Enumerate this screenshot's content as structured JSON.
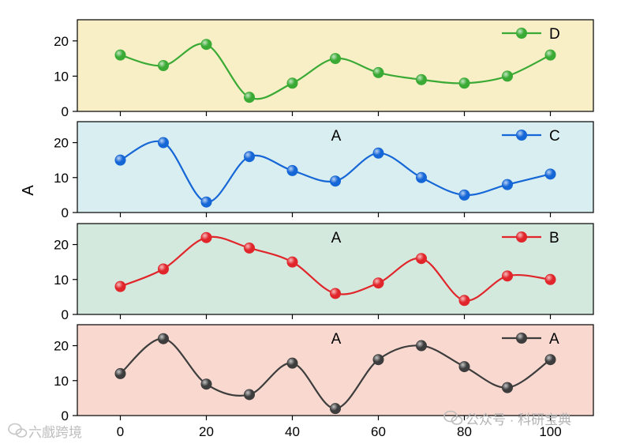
{
  "chart_data": {
    "type": "line",
    "layout": "stacked-panels",
    "x": [
      0,
      10,
      20,
      30,
      40,
      50,
      60,
      70,
      80,
      90,
      100
    ],
    "x_ticks": [
      "0",
      "20",
      "40",
      "60",
      "80",
      "100"
    ],
    "x_tick_values": [
      0,
      20,
      40,
      60,
      80,
      100
    ],
    "xlim": [
      -10,
      110
    ],
    "ylabel": "A",
    "y_ticks": [
      "0",
      "10",
      "20"
    ],
    "y_tick_values": [
      0,
      10,
      20
    ],
    "ylim": [
      0,
      26
    ],
    "smooth": true,
    "grid": false,
    "legend_position": "top-right",
    "panels": [
      {
        "id": "D",
        "background": "#f8efc7",
        "annotation": "",
        "series": [
          {
            "name": "D",
            "color": "#3aaa35",
            "values": [
              16,
              13,
              19,
              4,
              8,
              15,
              11,
              9,
              8,
              10,
              16
            ]
          }
        ]
      },
      {
        "id": "C",
        "background": "#d9eef0",
        "annotation": "A",
        "series": [
          {
            "name": "C",
            "color": "#1566d6",
            "values": [
              15,
              20,
              3,
              16,
              12,
              9,
              17,
              10,
              5,
              8,
              11
            ]
          }
        ]
      },
      {
        "id": "B",
        "background": "#d4e9dd",
        "annotation": "A",
        "series": [
          {
            "name": "B",
            "color": "#e0262b",
            "values": [
              8,
              13,
              22,
              19,
              15,
              6,
              9,
              16,
              4,
              11,
              10
            ]
          }
        ]
      },
      {
        "id": "A",
        "background": "#f9d9cf",
        "annotation": "A",
        "series": [
          {
            "name": "A",
            "color": "#3d3d3d",
            "values": [
              12,
              22,
              9,
              6,
              15,
              2,
              16,
              20,
              14,
              8,
              16
            ]
          }
        ]
      }
    ]
  },
  "watermarks": {
    "left": "六戲跨境",
    "right": "公众号 · 科研宝典",
    "left_icon": "wechat-logo-icon",
    "right_icon": "wechat-logo-icon"
  }
}
